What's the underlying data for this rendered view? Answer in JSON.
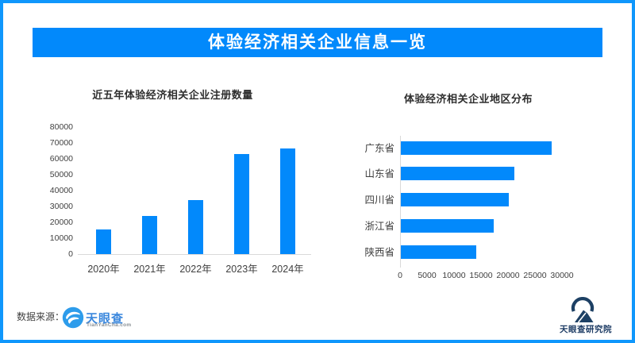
{
  "page": {
    "banner_title": "体验经济相关企业信息一览"
  },
  "colors": {
    "brand_blue": "#0289fb",
    "border_blue": "#0f97fc",
    "axis_gray": "#d9d9d9",
    "text_dark": "#404040",
    "tyc_word_blue": "#3a87dd",
    "institute_navy": "#1d4064"
  },
  "icons": {
    "tyc_eye": "tianyancha-eye-logo",
    "institute": "tianyancha-institute-logo"
  },
  "footer": {
    "source_label": "数据来源：",
    "tyc_logo_text": "天眼查",
    "tyc_logo_domain": "TianYanCha.com",
    "institute_name": "天眼查研究院"
  },
  "chart_data": [
    {
      "type": "bar",
      "orientation": "vertical",
      "title": "近五年体验经济相关企业注册数量",
      "categories": [
        "2020年",
        "2021年",
        "2022年",
        "2023年",
        "2024年"
      ],
      "values": [
        15500,
        24000,
        34000,
        63000,
        66500
      ],
      "ylim": [
        0,
        80000
      ],
      "ytick_step": 10000,
      "yticks": [
        0,
        10000,
        20000,
        30000,
        40000,
        50000,
        60000,
        70000,
        80000
      ],
      "grid": false,
      "legend": "none",
      "bar_color": "#0289fb"
    },
    {
      "type": "bar",
      "orientation": "horizontal",
      "title": "体验经济相关企业地区分布",
      "categories": [
        "广东省",
        "山东省",
        "四川省",
        "浙江省",
        "陕西省"
      ],
      "values": [
        28000,
        21000,
        20000,
        17200,
        14000
      ],
      "xlim": [
        0,
        32500
      ],
      "xticks": [
        0,
        5000,
        10000,
        15000,
        20000,
        25000,
        30000
      ],
      "grid": false,
      "legend": "none",
      "bar_color": "#0289fb"
    }
  ]
}
